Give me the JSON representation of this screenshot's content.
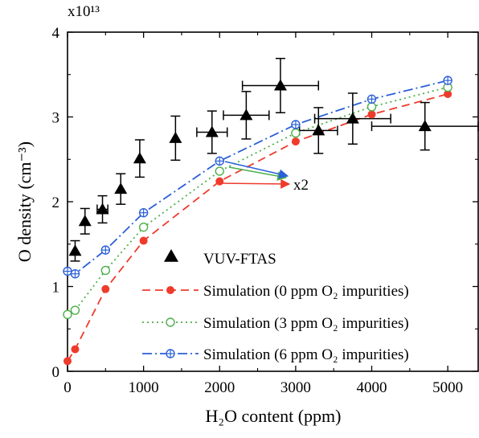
{
  "chart_data": {
    "type": "scatter",
    "xlabel": "H₂O content (ppm)",
    "ylabel": "O density (cm⁻³)",
    "xlim": [
      0,
      5400
    ],
    "ylim": [
      0,
      4
    ],
    "xticks": [
      "0",
      "1000",
      "2000",
      "3000",
      "4000",
      "5000"
    ],
    "yticks": [
      "0",
      "1",
      "2",
      "3",
      "4"
    ],
    "y_multiplier": "x10¹³",
    "y_scale_factor": 10000000000000.0,
    "grid": false,
    "legend_position": "lower-right",
    "series": [
      {
        "name": "VUV-FTAS",
        "style": "markers-errorbars",
        "marker": "filled-triangle",
        "color": "#000000",
        "x": [
          100,
          230,
          460,
          700,
          950,
          1420,
          1900,
          2350,
          2800,
          3300,
          3750,
          4700
        ],
        "y": [
          1.42,
          1.77,
          1.91,
          2.15,
          2.51,
          2.75,
          2.82,
          3.02,
          3.37,
          2.84,
          2.98,
          2.89
        ],
        "xerr": [
          0,
          0,
          70,
          0,
          0,
          0,
          200,
          300,
          500,
          250,
          500,
          700
        ],
        "yerr": [
          0.12,
          0.15,
          0.16,
          0.18,
          0.22,
          0.26,
          0.25,
          0.28,
          0.32,
          0.27,
          0.3,
          0.28
        ]
      },
      {
        "name": "Simulation (0 ppm O₂ impurities)",
        "style": "dashed-line-markers",
        "marker": "filled-circle",
        "color": "#ef3b2c",
        "x": [
          0,
          100,
          500,
          1000,
          2000,
          3000,
          4000,
          5000
        ],
        "y": [
          0.12,
          0.26,
          0.97,
          1.54,
          2.24,
          2.71,
          3.03,
          3.27
        ]
      },
      {
        "name": "Simulation (3 ppm O₂ impurities)",
        "style": "dotted-line-markers",
        "marker": "open-circle",
        "color": "#4daf4a",
        "x": [
          0,
          100,
          500,
          1000,
          2000,
          3000,
          4000,
          5000
        ],
        "y": [
          0.67,
          0.72,
          1.19,
          1.7,
          2.36,
          2.81,
          3.12,
          3.35
        ]
      },
      {
        "name": "Simulation (6 ppm O₂ impurities)",
        "style": "dashdot-line-markers",
        "marker": "crossed-circle",
        "color": "#2b5fd9",
        "x": [
          0,
          100,
          500,
          1000,
          2000,
          3000,
          4000,
          5000
        ],
        "y": [
          1.18,
          1.15,
          1.43,
          1.87,
          2.48,
          2.91,
          3.21,
          3.43
        ]
      }
    ],
    "annotations": [
      {
        "text": "x2"
      }
    ]
  }
}
